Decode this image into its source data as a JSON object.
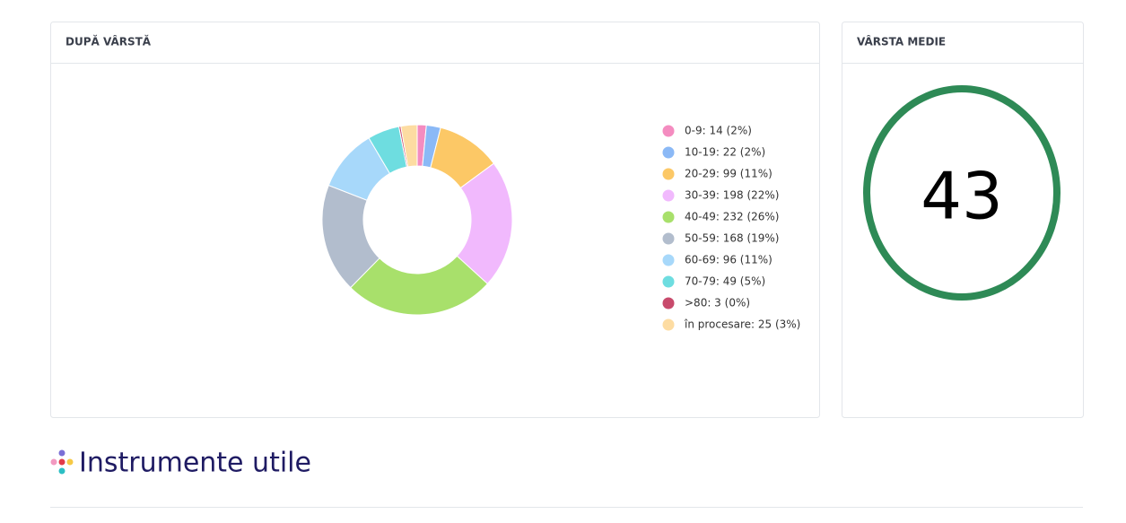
{
  "chart_data": {
    "type": "pie",
    "categories": [
      "0-9: 14 (2%)",
      "10-19: 22 (2%)",
      "20-29: 99 (11%)",
      "30-39: 198 (22%)",
      "40-49: 232 (26%)",
      "50-59: 168 (19%)",
      "60-69: 96 (11%)",
      "70-79: 49 (5%)",
      ">80: 3 (0%)",
      "în procesare: 25 (3%)"
    ],
    "values": [
      14,
      22,
      99,
      198,
      232,
      168,
      96,
      49,
      3,
      25
    ],
    "colors": [
      "#f48cc0",
      "#8bb9f6",
      "#fcc866",
      "#f1b9fd",
      "#a8e06b",
      "#b2bdcd",
      "#a7d8fa",
      "#6edde0",
      "#c84a6c",
      "#fddca2"
    ],
    "legend": "right"
  },
  "cards": [
    {
      "title": "DUPĂ VÂRSTĂ"
    },
    {
      "title": "VÂRSTA MEDIE",
      "value": 43
    }
  ],
  "section": {
    "title": "Instrumente utile"
  }
}
